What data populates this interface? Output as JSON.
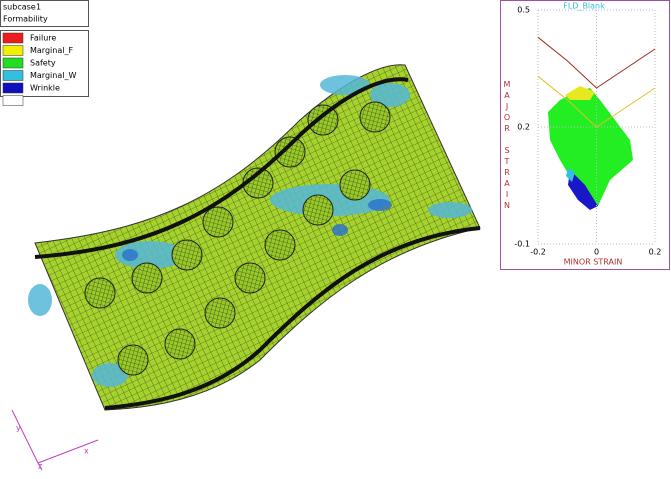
{
  "viewer": {
    "subcase_label": "subcase",
    "subcase_value": "1",
    "result": "Formability",
    "legend": [
      {
        "name": "Failure",
        "color": "#ee1c1c"
      },
      {
        "name": "Marginal_F",
        "color": "#f0f000"
      },
      {
        "name": "Safety",
        "color": "#22dd22"
      },
      {
        "name": "Marginal_W",
        "color": "#33c0e0"
      },
      {
        "name": "Wrinkle",
        "color": "#1010c0"
      }
    ],
    "triad": {
      "x": "x",
      "y": "y",
      "z": "z"
    }
  },
  "chart_data": {
    "type": "line",
    "title": "FLD_Blank",
    "x_label": "MINOR STRAIN",
    "y_label": "MAJOR STRAIN",
    "x": [
      -0.2,
      -0.1,
      0,
      0.1,
      0.2
    ],
    "series": [
      {
        "color": "#a02828",
        "values": [
          0.43,
          0.37,
          0.3,
          0.35,
          0.4
        ]
      },
      {
        "color": "#e0c020",
        "values": [
          0.33,
          0.27,
          0.2,
          0.25,
          0.3
        ]
      }
    ],
    "xlim": [
      -0.2,
      0.2
    ],
    "ylim": [
      -0.1,
      0.5
    ],
    "xticks": [
      -0.2,
      0,
      0.2
    ],
    "yticks": [
      0.5,
      0.2,
      -0.1
    ],
    "grid": true
  }
}
